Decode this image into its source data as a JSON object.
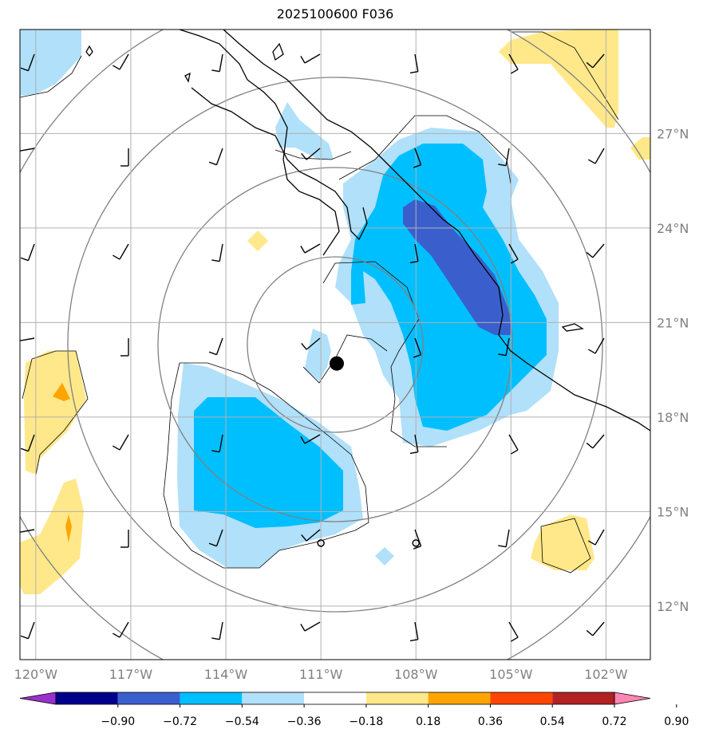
{
  "title": "2025100600 F036",
  "map": {
    "lon_labels": [
      "120°W",
      "117°W",
      "114°W",
      "111°W",
      "108°W",
      "105°W",
      "102°W"
    ],
    "lat_labels": [
      "27°N",
      "24°N",
      "21°N",
      "18°N",
      "15°N",
      "12°N"
    ],
    "lon_ticks": [
      -120,
      -117,
      -114,
      -111,
      -108,
      -105,
      -102
    ],
    "lat_ticks": [
      27,
      24,
      21,
      18,
      15,
      12
    ],
    "extent": {
      "lon_min": -120.5,
      "lon_max": -100.6,
      "lat_min": 10.3,
      "lat_max": 30.3
    },
    "center_marker": {
      "lon": -110.5,
      "lat": 19.7
    },
    "small_markers": [
      {
        "lon": -111.0,
        "lat": 14.0
      },
      {
        "lon": -108.0,
        "lat": 14.0
      }
    ]
  },
  "colorbar": {
    "labels": [
      "−0.90",
      "−0.72",
      "−0.54",
      "−0.36",
      "−0.18",
      "0.18",
      "0.36",
      "0.54",
      "0.72",
      "0.90"
    ],
    "colors": [
      "#9932cc",
      "#00008b",
      "#3a5fcd",
      "#00bfff",
      "#b0e0fa",
      "#ffffff",
      "#ffe88a",
      "#ffa500",
      "#ff4500",
      "#b22222",
      "#ff85b3"
    ]
  },
  "palette": {
    "light_blue": "#b0e0fa",
    "mid_blue": "#00bfff",
    "dark_blue": "#3a5fcd",
    "yellow": "#ffe88a",
    "orange": "#ffa500"
  }
}
